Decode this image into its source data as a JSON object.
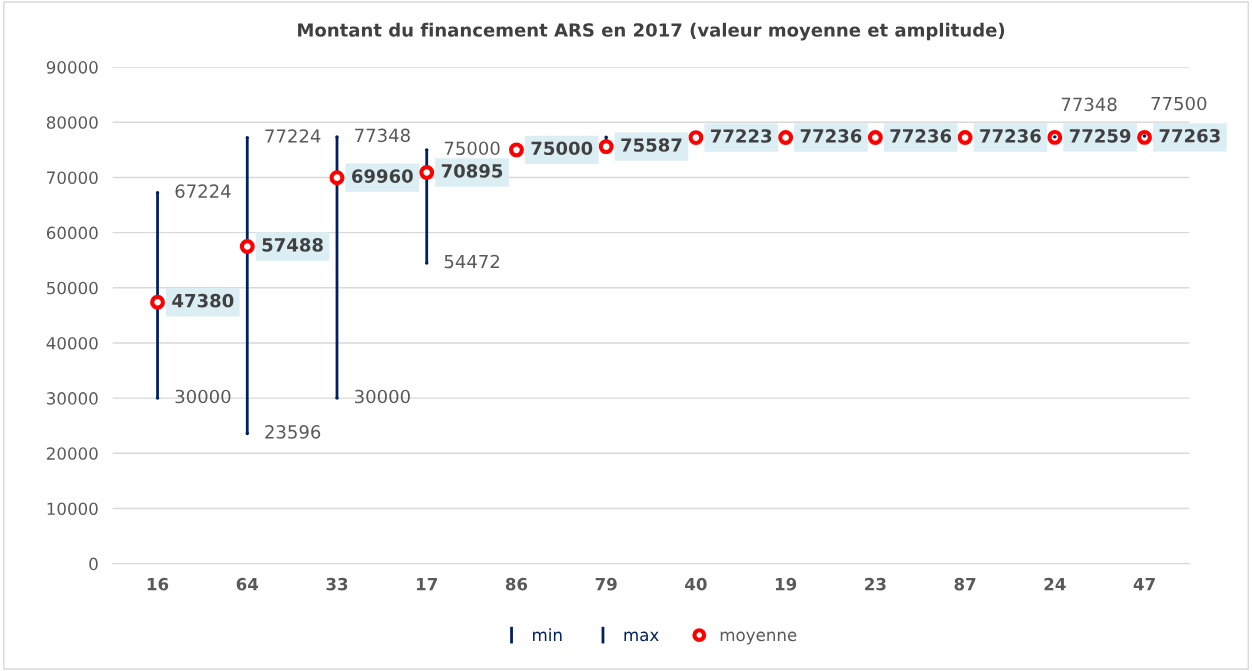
{
  "chart_data": {
    "type": "scatter",
    "title": "Montant du financement ARS en 2017 (valeur moyenne et amplitude)",
    "categories": [
      "16",
      "64",
      "33",
      "17",
      "86",
      "79",
      "40",
      "19",
      "23",
      "87",
      "24",
      "47"
    ],
    "series": [
      {
        "name": "min",
        "marker": "none",
        "color": "#002060",
        "values": [
          30000,
          23596,
          30000,
          54472,
          null,
          null,
          null,
          null,
          null,
          null,
          null,
          null
        ],
        "value_labels": [
          "30000",
          "23596",
          "30000",
          "54472",
          null,
          null,
          null,
          null,
          null,
          null,
          null,
          null
        ]
      },
      {
        "name": "max",
        "marker": "none",
        "color": "#002060",
        "values": [
          67224,
          77224,
          77348,
          75000,
          null,
          77300,
          null,
          null,
          null,
          null,
          77348,
          77500
        ],
        "value_labels": [
          "67224",
          "77224",
          "77348",
          "75000",
          null,
          null,
          null,
          null,
          null,
          null,
          "77348",
          "77500"
        ]
      },
      {
        "name": "moyenne",
        "marker": "circle",
        "color": "#ff0000",
        "values": [
          47380,
          57488,
          69960,
          70895,
          75000,
          75587,
          77223,
          77236,
          77236,
          77236,
          77259,
          77263
        ],
        "value_labels": [
          "47380",
          "57488",
          "69960",
          "70895",
          "75000",
          "75587",
          "77223",
          "77236",
          "77236",
          "77236",
          "77259",
          "77263"
        ]
      }
    ],
    "ylim": [
      0,
      90000
    ],
    "yticks": [
      0,
      10000,
      20000,
      30000,
      40000,
      50000,
      60000,
      70000,
      80000,
      90000
    ],
    "grid": "y",
    "legend": "bottom"
  }
}
